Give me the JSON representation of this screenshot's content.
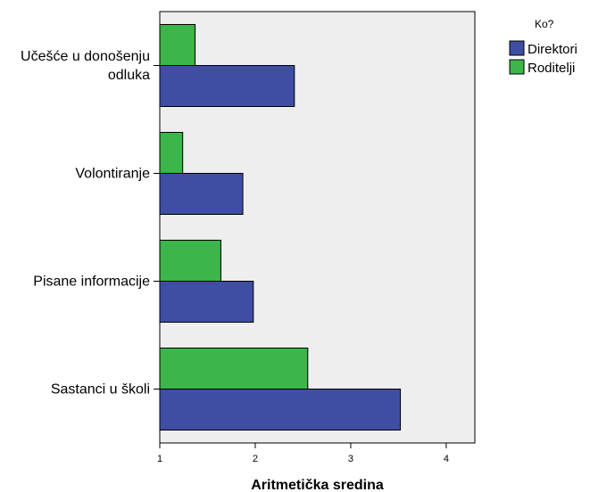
{
  "chart_data": {
    "type": "bar",
    "orientation": "horizontal",
    "categories": [
      "Učešće u donošenju odluka",
      "Volontiranje",
      "Pisane informacije",
      "Sastanci u školi"
    ],
    "category_label_lines": [
      [
        "Učešće u donošenju",
        "odluka"
      ],
      [
        "Volontiranje"
      ],
      [
        "Pisane informacije"
      ],
      [
        "Sastanci u školi"
      ]
    ],
    "series": [
      {
        "name": "Direktori",
        "values": [
          2.41,
          1.87,
          1.98,
          3.52
        ],
        "color": "#3f4ea3"
      },
      {
        "name": "Roditelji",
        "values": [
          1.37,
          1.24,
          1.64,
          2.55
        ],
        "color": "#3cb54a"
      }
    ],
    "xlabel": "Aritmetička sredina",
    "ylabel": "",
    "xlim": [
      1,
      4.3
    ],
    "xticks": [
      "1",
      "2",
      "3",
      "4"
    ],
    "legend_title": "Ko?",
    "legend_position": "top-right",
    "grid": false,
    "plot_background": "#efeeef"
  }
}
